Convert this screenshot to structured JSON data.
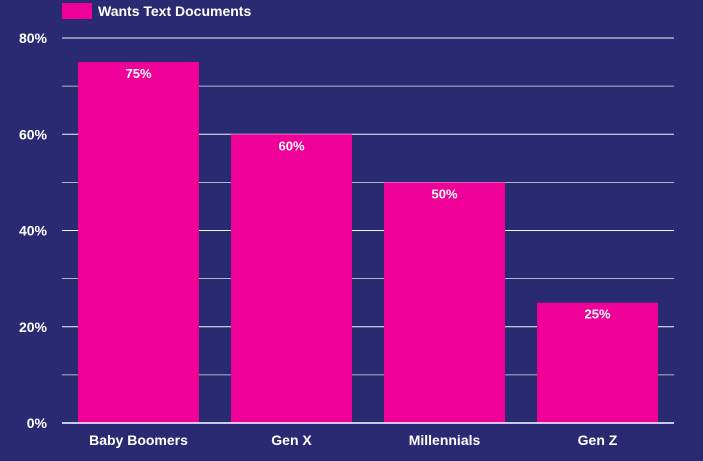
{
  "colors": {
    "background": "#2a2a72",
    "bar": "#ee0099",
    "grid": "#ffffff",
    "text": "#ffffff"
  },
  "chart_data": {
    "type": "bar",
    "categories": [
      "Baby Boomers",
      "Gen X",
      "Millennials",
      "Gen Z"
    ],
    "series": [
      {
        "name": "Wants Text Documents",
        "values": [
          75,
          60,
          50,
          25
        ]
      }
    ],
    "data_labels": [
      "75%",
      "60%",
      "50%",
      "25%"
    ],
    "y_ticks": [
      0,
      20,
      40,
      60,
      80
    ],
    "y_tick_labels": [
      "0%",
      "20%",
      "40%",
      "60%",
      "80%"
    ],
    "ylim": [
      0,
      80
    ],
    "minor_gridlines_every": 10,
    "grid": true,
    "legend_position": "top-left",
    "title": "",
    "xlabel": "",
    "ylabel": ""
  }
}
